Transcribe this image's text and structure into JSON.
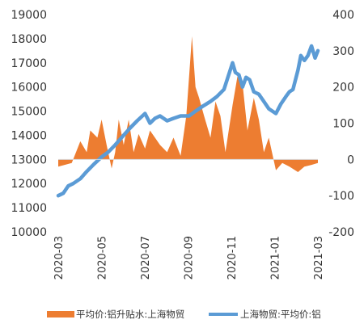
{
  "chart_data": {
    "type": "bar+line",
    "title": "",
    "left_axis": {
      "ylim": [
        10000,
        19000
      ],
      "ticks": [
        10000,
        11000,
        12000,
        13000,
        14000,
        15000,
        16000,
        17000,
        18000,
        19000
      ],
      "tick_labels": [
        "10000",
        "11000",
        "12000",
        "13000",
        "14000",
        "15000",
        "16000",
        "17000",
        "18000",
        "19000"
      ]
    },
    "right_axis": {
      "ylim": [
        -200,
        400
      ],
      "ticks": [
        -200,
        -100,
        0,
        100,
        200,
        300,
        400
      ],
      "tick_labels": [
        "-200",
        "-100",
        "0",
        "100",
        "200",
        "300",
        "400"
      ]
    },
    "x_axis": {
      "range": [
        "2020-03-01",
        "2021-03-01"
      ],
      "tick_labels": [
        "2020-03",
        "2020-05",
        "2020-07",
        "2020-09",
        "2020-11",
        "2021-01",
        "2021-03"
      ]
    },
    "grid": false,
    "legend_position": "bottom",
    "series": [
      {
        "name": "平均价:铝升贴水:上海物贸",
        "type": "area",
        "axis": "right",
        "color": "#ED7D31",
        "x": [
          "2020-03-01",
          "2020-03-10",
          "2020-03-20",
          "2020-04-01",
          "2020-04-10",
          "2020-04-15",
          "2020-04-25",
          "2020-05-01",
          "2020-05-08",
          "2020-05-15",
          "2020-05-20",
          "2020-05-25",
          "2020-06-01",
          "2020-06-08",
          "2020-06-15",
          "2020-06-22",
          "2020-07-01",
          "2020-07-08",
          "2020-07-15",
          "2020-07-22",
          "2020-08-01",
          "2020-08-10",
          "2020-08-20",
          "2020-08-28",
          "2020-09-01",
          "2020-09-05",
          "2020-09-10",
          "2020-09-15",
          "2020-09-22",
          "2020-10-01",
          "2020-10-08",
          "2020-10-15",
          "2020-10-22",
          "2020-11-01",
          "2020-11-08",
          "2020-11-15",
          "2020-11-22",
          "2020-12-01",
          "2020-12-08",
          "2020-12-15",
          "2020-12-22",
          "2021-01-01",
          "2021-01-10",
          "2021-01-20",
          "2021-02-01",
          "2021-02-10",
          "2021-02-20",
          "2021-03-01"
        ],
        "values": [
          -20,
          -15,
          -10,
          50,
          20,
          80,
          60,
          110,
          40,
          -25,
          20,
          110,
          40,
          110,
          20,
          70,
          30,
          80,
          60,
          40,
          20,
          60,
          10,
          120,
          230,
          340,
          200,
          170,
          120,
          60,
          160,
          120,
          20,
          150,
          230,
          210,
          80,
          170,
          110,
          20,
          60,
          -30,
          -10,
          -20,
          -35,
          -20,
          -15,
          -10
        ]
      },
      {
        "name": "上海物贸:平均价:铝",
        "type": "line",
        "axis": "left",
        "color": "#5B9BD5",
        "x": [
          "2020-03-01",
          "2020-03-08",
          "2020-03-15",
          "2020-03-22",
          "2020-04-01",
          "2020-04-10",
          "2020-04-20",
          "2020-05-01",
          "2020-05-10",
          "2020-05-20",
          "2020-06-01",
          "2020-06-10",
          "2020-06-20",
          "2020-07-01",
          "2020-07-08",
          "2020-07-15",
          "2020-07-22",
          "2020-08-01",
          "2020-08-10",
          "2020-08-20",
          "2020-09-01",
          "2020-09-10",
          "2020-09-20",
          "2020-10-01",
          "2020-10-10",
          "2020-10-20",
          "2020-11-01",
          "2020-11-05",
          "2020-11-10",
          "2020-11-15",
          "2020-11-20",
          "2020-11-25",
          "2020-12-01",
          "2020-12-08",
          "2020-12-15",
          "2020-12-22",
          "2021-01-01",
          "2021-01-08",
          "2021-01-15",
          "2021-01-20",
          "2021-01-25",
          "2021-02-01",
          "2021-02-05",
          "2021-02-10",
          "2021-02-15",
          "2021-02-20",
          "2021-02-25",
          "2021-03-01"
        ],
        "values": [
          11500,
          11600,
          11900,
          12000,
          12200,
          12500,
          12800,
          13100,
          13300,
          13600,
          14000,
          14300,
          14600,
          14900,
          14500,
          14700,
          14800,
          14600,
          14700,
          14800,
          14800,
          15000,
          15200,
          15400,
          15600,
          15900,
          17000,
          16600,
          16500,
          16000,
          16400,
          16300,
          15800,
          15700,
          15400,
          15100,
          14900,
          15300,
          15600,
          15800,
          15900,
          16700,
          17300,
          17100,
          17300,
          17700,
          17200,
          17500
        ]
      }
    ]
  },
  "colors": {
    "bar": "#ED7D31",
    "line": "#5B9BD5",
    "axis": "#D9D9D9",
    "text": "#333333"
  }
}
